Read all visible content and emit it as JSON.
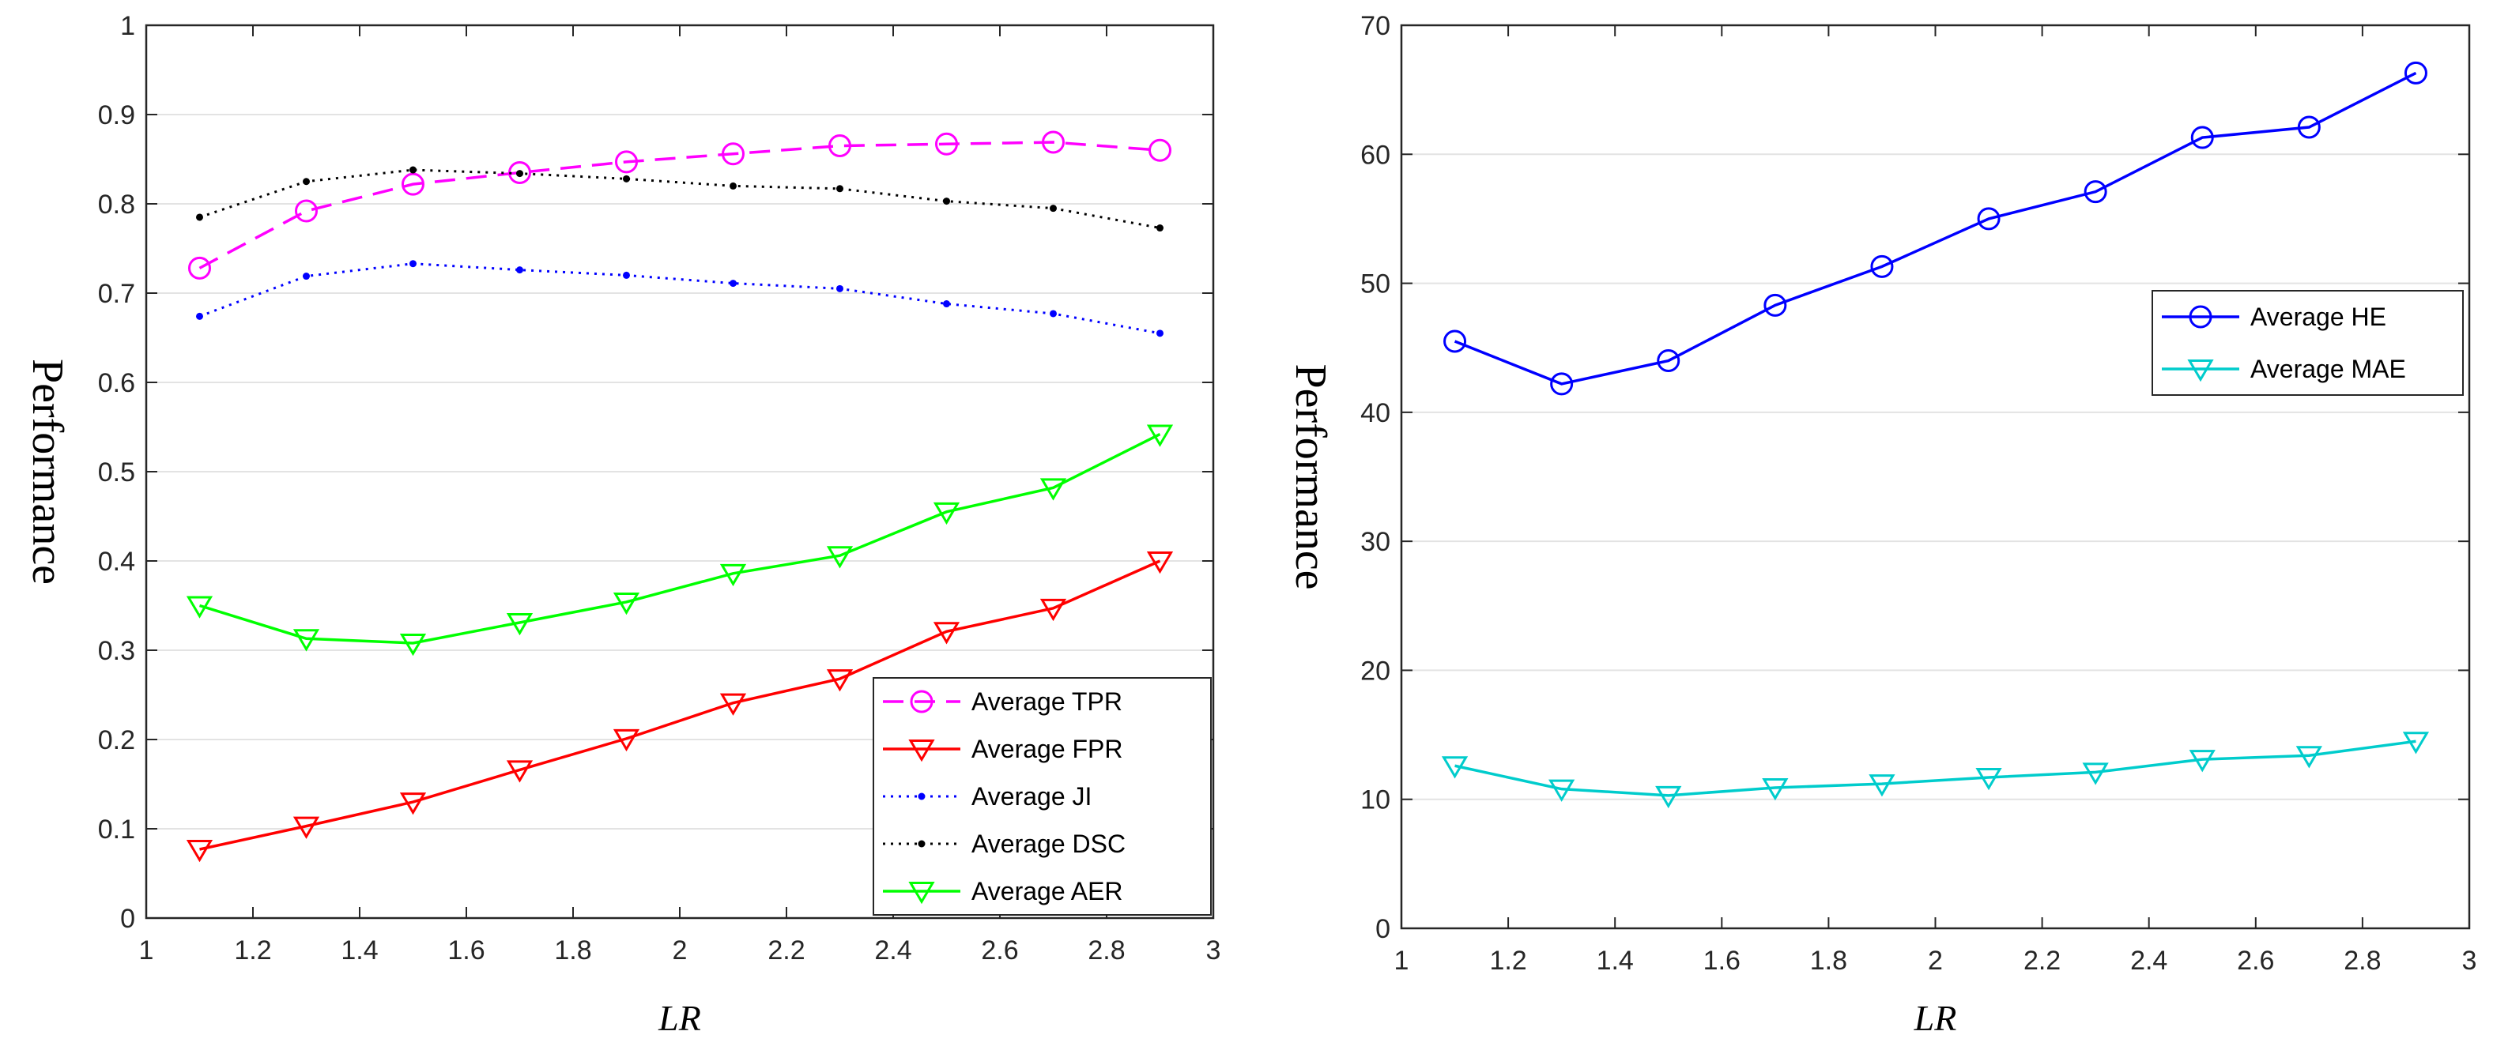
{
  "chart_data": [
    {
      "type": "line",
      "xlabel": "LR",
      "ylabel": "Performance",
      "xlim": [
        1,
        3
      ],
      "ylim": [
        0,
        1
      ],
      "xticks": [
        1,
        1.2,
        1.4,
        1.6,
        1.8,
        2,
        2.2,
        2.4,
        2.6,
        2.8,
        3
      ],
      "xtick_labels": [
        "1",
        "1.2",
        "1.4",
        "1.6",
        "1.8",
        "2",
        "2.2",
        "2.4",
        "2.6",
        "2.8",
        "3"
      ],
      "yticks": [
        0,
        0.1,
        0.2,
        0.3,
        0.4,
        0.5,
        0.6,
        0.7,
        0.8,
        0.9,
        1
      ],
      "ytick_labels": [
        "0",
        "0.1",
        "0.2",
        "0.3",
        "0.4",
        "0.5",
        "0.6",
        "0.7",
        "0.8",
        "0.9",
        "1"
      ],
      "grid": "horizontal",
      "legend_position": "bottom-right",
      "x": [
        1.1,
        1.3,
        1.5,
        1.7,
        1.9,
        2.1,
        2.3,
        2.5,
        2.7,
        2.9
      ],
      "series": [
        {
          "name": "Average TPR",
          "color": "#ff00ff",
          "marker": "circle",
          "dash": "dashed",
          "values": [
            0.728,
            0.792,
            0.822,
            0.835,
            0.847,
            0.856,
            0.865,
            0.867,
            0.869,
            0.86
          ]
        },
        {
          "name": "Average FPR",
          "color": "#ff0000",
          "marker": "triangle-down",
          "dash": "solid",
          "values": [
            0.077,
            0.103,
            0.13,
            0.166,
            0.201,
            0.241,
            0.268,
            0.321,
            0.347,
            0.4
          ]
        },
        {
          "name": "Average JI",
          "color": "#0000ff",
          "marker": "dot",
          "dash": "dotted",
          "values": [
            0.674,
            0.719,
            0.733,
            0.726,
            0.72,
            0.711,
            0.705,
            0.688,
            0.677,
            0.655
          ]
        },
        {
          "name": "Average DSC",
          "color": "#000000",
          "marker": "dot",
          "dash": "dotted",
          "values": [
            0.785,
            0.825,
            0.838,
            0.834,
            0.828,
            0.82,
            0.817,
            0.803,
            0.795,
            0.773
          ]
        },
        {
          "name": "Average AER",
          "color": "#00ff00",
          "marker": "triangle-down",
          "dash": "solid",
          "values": [
            0.35,
            0.313,
            0.308,
            0.331,
            0.354,
            0.386,
            0.406,
            0.455,
            0.482,
            0.542
          ]
        }
      ]
    },
    {
      "type": "line",
      "xlabel": "LR",
      "ylabel": "Performance",
      "xlim": [
        1,
        3
      ],
      "ylim": [
        0,
        70
      ],
      "xticks": [
        1,
        1.2,
        1.4,
        1.6,
        1.8,
        2,
        2.2,
        2.4,
        2.6,
        2.8,
        3
      ],
      "xtick_labels": [
        "1",
        "1.2",
        "1.4",
        "1.6",
        "1.8",
        "2",
        "2.2",
        "2.4",
        "2.6",
        "2.8",
        "3"
      ],
      "yticks": [
        0,
        10,
        20,
        30,
        40,
        50,
        60,
        70
      ],
      "ytick_labels": [
        "0",
        "10",
        "20",
        "30",
        "40",
        "50",
        "60",
        "70"
      ],
      "grid": "horizontal",
      "legend_position": "top-right",
      "x": [
        1.1,
        1.3,
        1.5,
        1.7,
        1.9,
        2.1,
        2.3,
        2.5,
        2.7,
        2.9
      ],
      "series": [
        {
          "name": "Average HE",
          "color": "#0000ff",
          "marker": "circle",
          "dash": "solid",
          "values": [
            45.5,
            42.2,
            44.0,
            48.3,
            51.3,
            55.0,
            57.1,
            61.3,
            62.1,
            66.3
          ]
        },
        {
          "name": "Average MAE",
          "color": "#00cccc",
          "marker": "triangle-down",
          "dash": "solid",
          "values": [
            12.6,
            10.8,
            10.3,
            10.9,
            11.2,
            11.7,
            12.1,
            13.1,
            13.4,
            14.5
          ]
        }
      ]
    }
  ]
}
